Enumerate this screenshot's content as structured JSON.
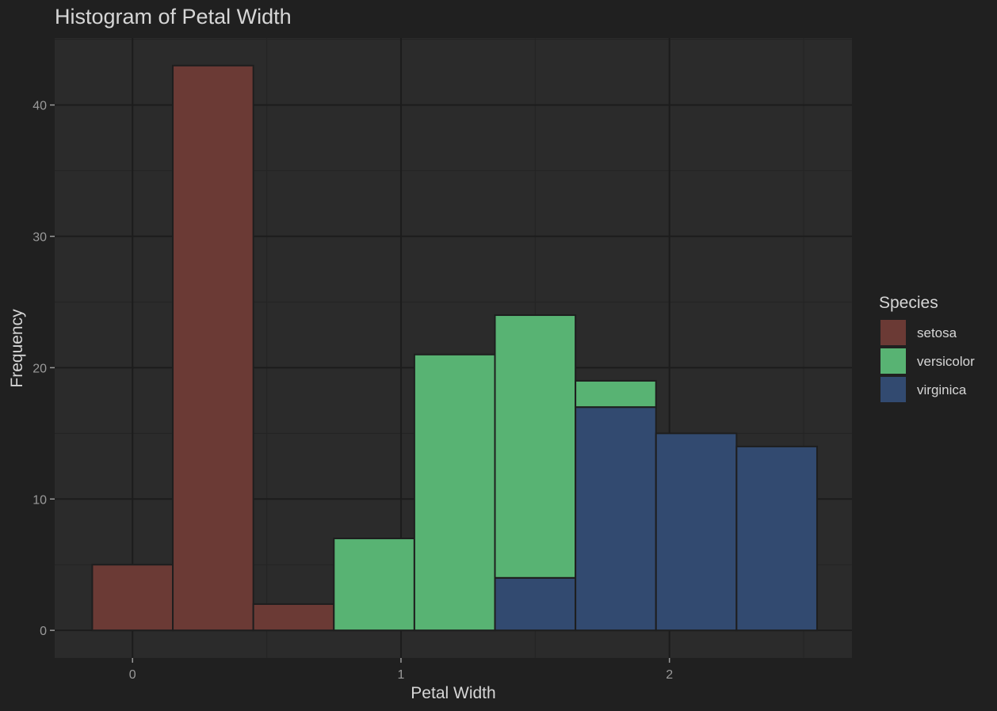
{
  "chart_data": {
    "type": "bar",
    "subtype": "stacked-histogram",
    "title": "Histogram of Petal Width",
    "xlabel": "Petal Width",
    "ylabel": "Frequency",
    "xlim": [
      -0.29,
      2.68
    ],
    "ylim": [
      -2.1,
      45.1
    ],
    "x_ticks": [
      0,
      1,
      2
    ],
    "y_ticks": [
      0,
      10,
      20,
      30,
      40
    ],
    "grid": true,
    "legend": {
      "title": "Species",
      "position": "right"
    },
    "bin_width": 0.3,
    "bin_starts": [
      -0.15,
      0.15,
      0.45,
      0.75,
      1.05,
      1.35,
      1.65,
      1.95,
      2.25
    ],
    "series": [
      {
        "name": "setosa",
        "color": "#6b3a35",
        "values": [
          5,
          43,
          2,
          0,
          0,
          0,
          0,
          0,
          0
        ]
      },
      {
        "name": "versicolor",
        "color": "#58b373",
        "values": [
          0,
          0,
          0,
          7,
          21,
          20,
          2,
          0,
          0
        ]
      },
      {
        "name": "virginica",
        "color": "#324a70",
        "values": [
          0,
          0,
          0,
          0,
          0,
          4,
          17,
          15,
          14
        ]
      }
    ]
  }
}
